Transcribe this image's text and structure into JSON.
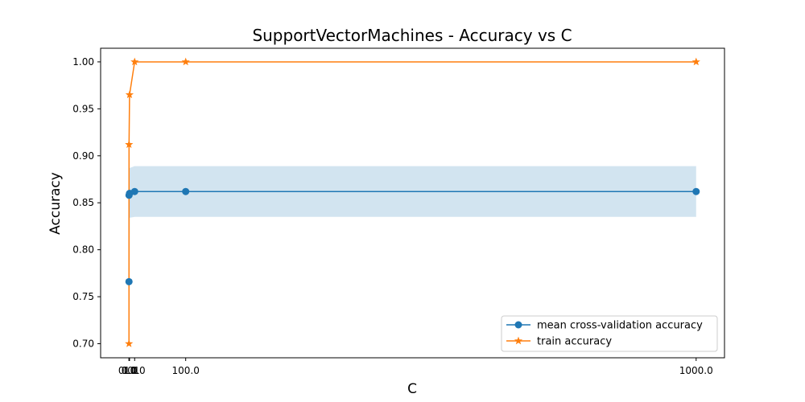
{
  "chart_data": {
    "type": "line",
    "title": "SupportVectorMachines - Accuracy vs C",
    "xlabel": "C",
    "ylabel": "Accuracy",
    "x": [
      0.01,
      0.1,
      1.0,
      10.0,
      100.0,
      1000.0
    ],
    "x_tick_values": [
      0.01,
      0.1,
      1.0,
      10.0,
      100.0,
      1000.0
    ],
    "x_tick_labels": [
      "0.01",
      "0.1",
      "1.0",
      "10.0",
      "100.0",
      "1000.0"
    ],
    "y_tick_values": [
      0.7,
      0.75,
      0.8,
      0.85,
      0.9,
      0.95,
      1.0
    ],
    "y_tick_labels": [
      "0.70",
      "0.75",
      "0.80",
      "0.85",
      "0.90",
      "0.95",
      "1.00"
    ],
    "xlim": [
      -50,
      1050
    ],
    "ylim": [
      0.685,
      1.0145
    ],
    "grid": false,
    "legend_position": "lower-right",
    "series": [
      {
        "name": "mean cross-validation accuracy",
        "color": "#1f77b4",
        "marker": "circle",
        "values": [
          0.766,
          0.858,
          0.86,
          0.862,
          0.862,
          0.862
        ],
        "band_lower": [
          0.742,
          0.832,
          0.834,
          0.835,
          0.835,
          0.835
        ],
        "band_upper": [
          0.79,
          0.884,
          0.887,
          0.889,
          0.889,
          0.889
        ],
        "band_color": "#1f77b4"
      },
      {
        "name": "train accuracy",
        "color": "#ff7f0e",
        "marker": "star",
        "values": [
          0.7,
          0.912,
          0.965,
          1.0,
          1.0,
          1.0
        ]
      }
    ]
  }
}
